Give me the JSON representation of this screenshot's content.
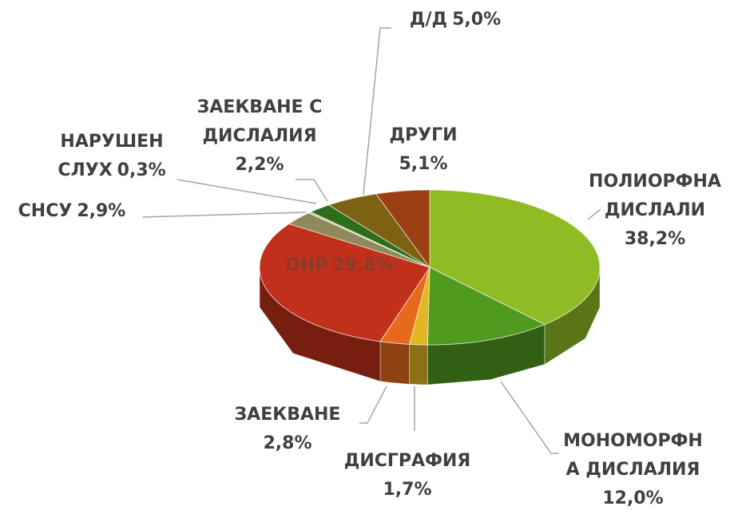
{
  "chart_data": {
    "type": "pie3d",
    "categories": [
      "ПОЛИОРФНА ДИСЛАЛИ",
      "МОНОМОРФНА ДИСЛАЛИЯ",
      "ДИСГРАФИЯ",
      "ЗАЕКВАНЕ",
      "ОНР",
      "СНСУ",
      "НАРУШЕН СЛУХ",
      "ЗАЕКВАНЕ С ДИСЛАЛИЯ",
      "Д/Д",
      "ДРУГИ"
    ],
    "values": [
      38.2,
      12.0,
      1.7,
      2.8,
      29.8,
      2.9,
      0.3,
      2.2,
      5.0,
      5.1
    ],
    "value_labels": [
      "38,2%",
      "12,0%",
      "1,7%",
      "2,8%",
      "29,8%",
      "2,9%",
      "0,3%",
      "2,2%",
      "5,0%",
      "5,1%"
    ],
    "colors": [
      "#8fbc24",
      "#4f9a1f",
      "#e3b623",
      "#e56a1c",
      "#c0301a",
      "#8e8a5c",
      "#cfc6a4",
      "#2e6e1b",
      "#7d6212",
      "#9b3f12"
    ]
  }
}
